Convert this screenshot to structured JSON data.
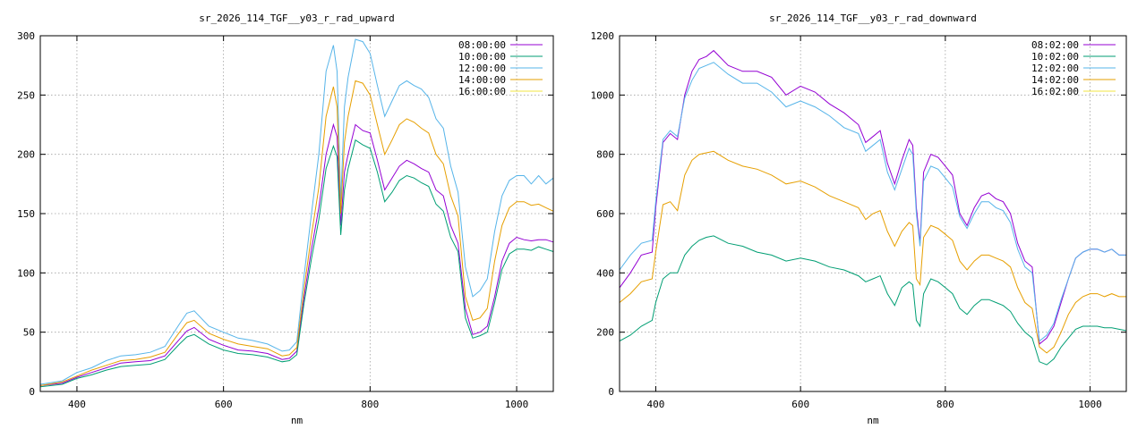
{
  "chart_data": [
    {
      "type": "line",
      "title": "sr_2026_114_TGF__y03_r_rad_upward",
      "xlabel": "nm",
      "ylabel": "",
      "xlim": [
        350,
        1050
      ],
      "ylim": [
        0,
        300
      ],
      "xticks": [
        400,
        600,
        800,
        1000
      ],
      "yticks": [
        0,
        50,
        100,
        150,
        200,
        250,
        300
      ],
      "grid": true,
      "legend_position": "top-right",
      "series": [
        {
          "name": "08:00:00",
          "color": "#9400d3",
          "x": [
            350,
            380,
            400,
            420,
            440,
            460,
            480,
            500,
            520,
            540,
            550,
            560,
            580,
            600,
            620,
            640,
            660,
            680,
            690,
            700,
            710,
            720,
            730,
            740,
            750,
            755,
            760,
            765,
            770,
            780,
            790,
            800,
            810,
            820,
            830,
            840,
            850,
            860,
            870,
            880,
            890,
            900,
            910,
            920,
            930,
            940,
            950,
            960,
            970,
            980,
            990,
            1000,
            1010,
            1020,
            1030,
            1040,
            1050
          ],
          "y": [
            5,
            7,
            12,
            16,
            20,
            24,
            25,
            26,
            30,
            44,
            51,
            54,
            44,
            39,
            35,
            34,
            32,
            27,
            28,
            34,
            80,
            120,
            155,
            200,
            225,
            215,
            140,
            185,
            200,
            225,
            220,
            218,
            195,
            170,
            180,
            190,
            195,
            192,
            188,
            185,
            170,
            165,
            140,
            125,
            70,
            48,
            50,
            55,
            80,
            110,
            125,
            130,
            128,
            127,
            128,
            128,
            126
          ]
        },
        {
          "name": "10:00:00",
          "color": "#009e73",
          "x": [
            350,
            380,
            400,
            420,
            440,
            460,
            480,
            500,
            520,
            540,
            550,
            560,
            580,
            600,
            620,
            640,
            660,
            680,
            690,
            700,
            710,
            720,
            730,
            740,
            750,
            755,
            760,
            765,
            770,
            780,
            790,
            800,
            810,
            820,
            830,
            840,
            850,
            860,
            870,
            880,
            890,
            900,
            910,
            920,
            930,
            940,
            950,
            960,
            970,
            980,
            990,
            1000,
            1010,
            1020,
            1030,
            1040,
            1050
          ],
          "y": [
            4,
            6,
            11,
            14,
            18,
            21,
            22,
            23,
            27,
            40,
            46,
            48,
            40,
            35,
            32,
            31,
            29,
            25,
            26,
            31,
            75,
            112,
            145,
            188,
            207,
            198,
            132,
            170,
            188,
            212,
            208,
            205,
            185,
            160,
            168,
            178,
            182,
            180,
            176,
            173,
            158,
            152,
            130,
            118,
            62,
            45,
            47,
            50,
            75,
            103,
            116,
            120,
            120,
            119,
            122,
            120,
            118
          ]
        },
        {
          "name": "12:00:00",
          "color": "#56b4e9",
          "x": [
            350,
            380,
            400,
            420,
            440,
            460,
            480,
            500,
            520,
            540,
            550,
            560,
            580,
            600,
            620,
            640,
            660,
            680,
            690,
            700,
            710,
            720,
            730,
            740,
            750,
            755,
            760,
            765,
            770,
            780,
            790,
            800,
            810,
            820,
            830,
            840,
            850,
            860,
            870,
            880,
            890,
            900,
            910,
            920,
            930,
            940,
            950,
            960,
            970,
            980,
            990,
            1000,
            1010,
            1020,
            1030,
            1040,
            1050
          ],
          "y": [
            6,
            9,
            16,
            20,
            26,
            30,
            31,
            33,
            38,
            57,
            66,
            68,
            55,
            50,
            45,
            43,
            40,
            34,
            35,
            42,
            98,
            150,
            200,
            270,
            292,
            270,
            160,
            240,
            265,
            297,
            295,
            285,
            258,
            232,
            245,
            258,
            262,
            258,
            255,
            248,
            230,
            222,
            190,
            168,
            105,
            80,
            85,
            95,
            135,
            165,
            178,
            182,
            182,
            175,
            182,
            175,
            180
          ]
        },
        {
          "name": "14:00:00",
          "color": "#e69f00",
          "x": [
            350,
            380,
            400,
            420,
            440,
            460,
            480,
            500,
            520,
            540,
            550,
            560,
            580,
            600,
            620,
            640,
            660,
            680,
            690,
            700,
            710,
            720,
            730,
            740,
            750,
            755,
            760,
            765,
            770,
            780,
            790,
            800,
            810,
            820,
            830,
            840,
            850,
            860,
            870,
            880,
            890,
            900,
            910,
            920,
            930,
            940,
            950,
            960,
            970,
            980,
            990,
            1000,
            1010,
            1020,
            1030,
            1040,
            1050
          ],
          "y": [
            5,
            8,
            13,
            18,
            22,
            26,
            27,
            29,
            33,
            50,
            58,
            60,
            49,
            44,
            40,
            38,
            36,
            30,
            31,
            37,
            87,
            132,
            172,
            232,
            257,
            240,
            150,
            210,
            232,
            262,
            260,
            250,
            225,
            200,
            212,
            225,
            230,
            227,
            222,
            218,
            200,
            192,
            165,
            148,
            80,
            60,
            62,
            70,
            110,
            140,
            155,
            160,
            160,
            157,
            158,
            155,
            152
          ]
        },
        {
          "name": "16:00:00",
          "color": "#f0e442",
          "x": [],
          "y": []
        }
      ]
    },
    {
      "type": "line",
      "title": "sr_2026_114_TGF__y03_r_rad_downward",
      "xlabel": "nm",
      "ylabel": "",
      "xlim": [
        350,
        1050
      ],
      "ylim": [
        0,
        1200
      ],
      "xticks": [
        400,
        600,
        800,
        1000
      ],
      "yticks": [
        0,
        200,
        400,
        600,
        800,
        1000,
        1200
      ],
      "grid": true,
      "legend_position": "top-right",
      "series": [
        {
          "name": "08:02:00",
          "color": "#9400d3",
          "x": [
            350,
            365,
            380,
            395,
            400,
            410,
            420,
            430,
            440,
            450,
            460,
            470,
            480,
            500,
            520,
            540,
            560,
            580,
            600,
            620,
            640,
            660,
            680,
            690,
            700,
            710,
            720,
            730,
            740,
            750,
            755,
            760,
            765,
            770,
            780,
            790,
            800,
            810,
            820,
            830,
            840,
            850,
            860,
            870,
            880,
            890,
            900,
            910,
            920,
            930,
            940,
            950,
            960,
            970,
            980,
            990,
            1000,
            1010,
            1020,
            1030,
            1040,
            1050
          ],
          "y": [
            350,
            400,
            460,
            470,
            620,
            840,
            870,
            850,
            1000,
            1080,
            1120,
            1130,
            1150,
            1100,
            1080,
            1080,
            1060,
            1000,
            1030,
            1010,
            970,
            940,
            900,
            840,
            860,
            880,
            770,
            700,
            780,
            850,
            830,
            620,
            500,
            740,
            800,
            790,
            760,
            730,
            600,
            560,
            620,
            660,
            670,
            650,
            640,
            600,
            500,
            440,
            420,
            160,
            180,
            220,
            300,
            380,
            450,
            470,
            480,
            480,
            470,
            480,
            460,
            460
          ]
        },
        {
          "name": "10:02:00",
          "color": "#009e73",
          "x": [
            350,
            365,
            380,
            395,
            400,
            410,
            420,
            430,
            440,
            450,
            460,
            470,
            480,
            500,
            520,
            540,
            560,
            580,
            600,
            620,
            640,
            660,
            680,
            690,
            700,
            710,
            720,
            730,
            740,
            750,
            755,
            760,
            765,
            770,
            780,
            790,
            800,
            810,
            820,
            830,
            840,
            850,
            860,
            870,
            880,
            890,
            900,
            910,
            920,
            930,
            940,
            950,
            960,
            970,
            980,
            990,
            1000,
            1010,
            1020,
            1030,
            1040,
            1050
          ],
          "y": [
            170,
            190,
            220,
            240,
            300,
            380,
            400,
            400,
            460,
            490,
            510,
            520,
            525,
            500,
            490,
            470,
            460,
            440,
            450,
            440,
            420,
            410,
            390,
            370,
            380,
            390,
            330,
            290,
            350,
            370,
            360,
            240,
            220,
            330,
            380,
            370,
            350,
            330,
            280,
            260,
            290,
            310,
            310,
            300,
            290,
            270,
            230,
            200,
            180,
            100,
            90,
            110,
            150,
            180,
            210,
            220,
            220,
            220,
            215,
            215,
            210,
            205
          ]
        },
        {
          "name": "12:02:00",
          "color": "#56b4e9",
          "x": [
            350,
            365,
            380,
            395,
            400,
            410,
            420,
            430,
            440,
            450,
            460,
            470,
            480,
            500,
            520,
            540,
            560,
            580,
            600,
            620,
            640,
            660,
            680,
            690,
            700,
            710,
            720,
            730,
            740,
            750,
            755,
            760,
            765,
            770,
            780,
            790,
            800,
            810,
            820,
            830,
            840,
            850,
            860,
            870,
            880,
            890,
            900,
            910,
            920,
            930,
            940,
            950,
            960,
            970,
            980,
            990,
            1000,
            1010,
            1020,
            1030,
            1040,
            1050
          ],
          "y": [
            410,
            460,
            500,
            510,
            640,
            850,
            880,
            860,
            990,
            1050,
            1090,
            1100,
            1110,
            1070,
            1040,
            1040,
            1010,
            960,
            980,
            960,
            930,
            890,
            870,
            810,
            830,
            850,
            740,
            680,
            750,
            820,
            800,
            600,
            490,
            710,
            760,
            750,
            720,
            690,
            590,
            550,
            600,
            640,
            640,
            620,
            610,
            570,
            480,
            420,
            400,
            170,
            190,
            230,
            310,
            380,
            450,
            470,
            480,
            480,
            470,
            480,
            460,
            460
          ]
        },
        {
          "name": "14:02:00",
          "color": "#e69f00",
          "x": [
            350,
            365,
            380,
            395,
            400,
            410,
            420,
            430,
            440,
            450,
            460,
            470,
            480,
            500,
            520,
            540,
            560,
            580,
            600,
            620,
            640,
            660,
            680,
            690,
            700,
            710,
            720,
            730,
            740,
            750,
            755,
            760,
            765,
            770,
            780,
            790,
            800,
            810,
            820,
            830,
            840,
            850,
            860,
            870,
            880,
            890,
            900,
            910,
            920,
            930,
            940,
            950,
            960,
            970,
            980,
            990,
            1000,
            1010,
            1020,
            1030,
            1040,
            1050
          ],
          "y": [
            300,
            330,
            370,
            380,
            470,
            630,
            640,
            610,
            730,
            780,
            800,
            805,
            810,
            780,
            760,
            750,
            730,
            700,
            710,
            690,
            660,
            640,
            620,
            580,
            600,
            610,
            540,
            490,
            540,
            570,
            560,
            380,
            360,
            520,
            560,
            550,
            530,
            510,
            440,
            410,
            440,
            460,
            460,
            450,
            440,
            420,
            350,
            300,
            280,
            150,
            130,
            150,
            200,
            260,
            300,
            320,
            330,
            330,
            320,
            330,
            320,
            320
          ]
        },
        {
          "name": "16:02:00",
          "color": "#f0e442",
          "x": [],
          "y": []
        }
      ]
    }
  ]
}
